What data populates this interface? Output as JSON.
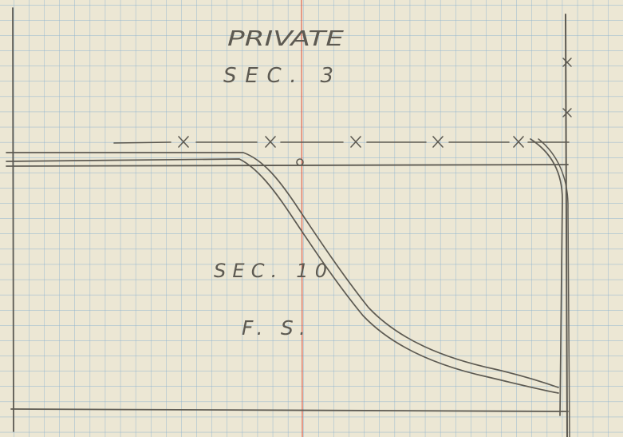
{
  "labels": {
    "ownership": "PRIVATE",
    "top_section": "SEC. 3",
    "bottom_section": "SEC. 10",
    "agency": "F. S."
  },
  "colors": {
    "paper": "#ece7d4",
    "grid": "#8fb3cf",
    "margin_line": "#e0533f",
    "pencil": "#5d5a52"
  }
}
